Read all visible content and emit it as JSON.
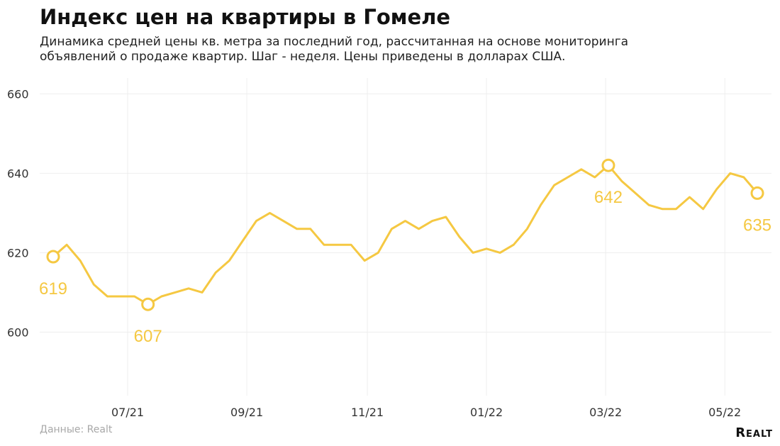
{
  "header": {
    "title": "Индекс цен на квартиры в Гомеле",
    "subtitle_line1": "Динамика средней цены кв. метра за последний год, рассчитанная на основе мониторинга",
    "subtitle_line2": "объявлений о продаже квартир. Шаг - неделя. Цены приведены в долларах США."
  },
  "footer": {
    "source": "Данные: Realt",
    "brand": "Realt"
  },
  "colors": {
    "line": "#f5c842",
    "grid": "#eeeeee",
    "label": "#f5c842"
  },
  "chart_data": {
    "type": "line",
    "title": "Индекс цен на квартиры в Гомеле",
    "xlabel": "",
    "ylabel": "",
    "ylim": [
      584,
      664
    ],
    "yticks": [
      600,
      620,
      640,
      660
    ],
    "xticks": [
      {
        "label": "07/21",
        "week": 5.5
      },
      {
        "label": "09/21",
        "week": 14.3
      },
      {
        "label": "11/21",
        "week": 23.2
      },
      {
        "label": "01/22",
        "week": 32
      },
      {
        "label": "03/22",
        "week": 40.8
      },
      {
        "label": "05/22",
        "week": 49.6
      }
    ],
    "grid": true,
    "series": [
      {
        "values": [
          619,
          622,
          618,
          612,
          609,
          609,
          609,
          607,
          609,
          610,
          611,
          610,
          615,
          618,
          623,
          628,
          630,
          628,
          626,
          626,
          622,
          622,
          622,
          618,
          620,
          626,
          628,
          626,
          628,
          629,
          624,
          620,
          621,
          620,
          622,
          626,
          632,
          637,
          639,
          641,
          639,
          642,
          638,
          635,
          632,
          631,
          631,
          634,
          631,
          636,
          640,
          639,
          635
        ]
      }
    ],
    "highlighted_points": [
      {
        "week": 0,
        "value": 619,
        "label": "619",
        "pos": "below"
      },
      {
        "week": 7,
        "value": 607,
        "label": "607",
        "pos": "below"
      },
      {
        "week": 41,
        "value": 642,
        "label": "642",
        "pos": "below"
      },
      {
        "week": 52,
        "value": 635,
        "label": "635",
        "pos": "below"
      }
    ]
  }
}
